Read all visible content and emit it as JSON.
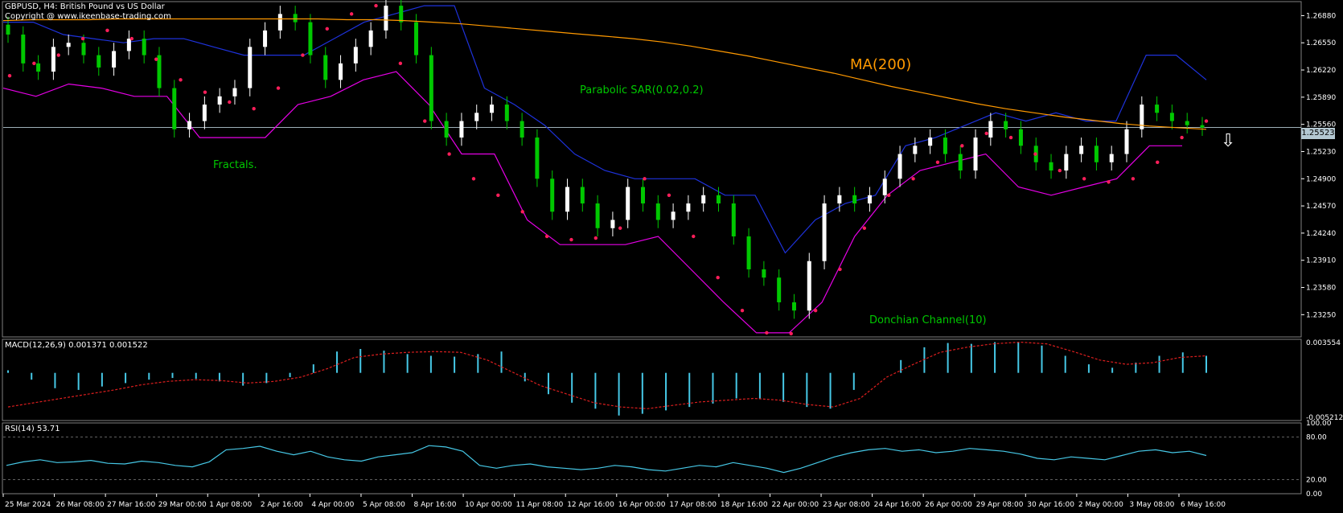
{
  "header": {
    "title": "GBPUSD, H4:  British Pound vs US Dollar",
    "copyright": "Copyright @ www.ikeenbase-trading.com"
  },
  "annotations": {
    "ma": "MA(200)",
    "sar": "Parabolic SAR(0.02,0.2)",
    "fractals": "Fractals.",
    "donchian": "Donchian Channel(10)"
  },
  "indicator_labels": {
    "macd": "MACD(12,26,9) 0.001371 0.001522",
    "rsi": "RSI(14) 53.71"
  },
  "current_price": "1.25523",
  "colors": {
    "background": "#000000",
    "grid": "#808080",
    "bull_candle": "#ffffff",
    "bear_candle": "#00c800",
    "ma": "#ff9900",
    "sar": "#ff1e5a",
    "donchian_upper": "#1e32dc",
    "donchian_lower": "#e600e6",
    "fractal": "#46c8e6",
    "macd_hist": "#46c8e6",
    "macd_signal": "#dc1e1e",
    "rsi": "#46c8e6",
    "annotation": "#00c800"
  },
  "chart_data": {
    "type": "candlestick",
    "main": {
      "ylim": [
        1.2298,
        1.2705
      ],
      "y_ticks": [
        "1.26880",
        "1.26550",
        "1.26220",
        "1.25890",
        "1.25560",
        "1.25230",
        "1.24900",
        "1.24570",
        "1.24240",
        "1.23910",
        "1.23580",
        "1.23250"
      ],
      "close": [
        1.2665,
        1.263,
        1.262,
        1.265,
        1.2655,
        1.264,
        1.2625,
        1.2645,
        1.266,
        1.264,
        1.26,
        1.255,
        1.256,
        1.258,
        1.259,
        1.26,
        1.265,
        1.267,
        1.269,
        1.268,
        1.264,
        1.261,
        1.263,
        1.265,
        1.267,
        1.27,
        1.268,
        1.264,
        1.256,
        1.254,
        1.256,
        1.257,
        1.258,
        1.256,
        1.254,
        1.249,
        1.245,
        1.248,
        1.246,
        1.243,
        1.244,
        1.248,
        1.246,
        1.244,
        1.245,
        1.246,
        1.247,
        1.246,
        1.242,
        1.238,
        1.237,
        1.234,
        1.233,
        1.239,
        1.246,
        1.247,
        1.246,
        1.247,
        1.249,
        1.252,
        1.253,
        1.254,
        1.252,
        1.25,
        1.254,
        1.256,
        1.255,
        1.253,
        1.251,
        1.25,
        1.252,
        1.253,
        1.251,
        1.252,
        1.255,
        1.258,
        1.257,
        1.256,
        1.2555,
        1.2552
      ],
      "ma200": [
        1.2682,
        1.2683,
        1.2683,
        1.2683,
        1.2684,
        1.2684,
        1.2684,
        1.2684,
        1.2684,
        1.2684,
        1.2684,
        1.2684,
        1.2683,
        1.2683,
        1.2682,
        1.268,
        1.2678,
        1.2675,
        1.2672,
        1.2669,
        1.2666,
        1.2663,
        1.266,
        1.2656,
        1.2651,
        1.2645,
        1.2639,
        1.2632,
        1.2625,
        1.2618,
        1.261,
        1.2602,
        1.2595,
        1.2588,
        1.2581,
        1.2575,
        1.257,
        1.2565,
        1.2561,
        1.2557,
        1.2554,
        1.2552,
        1.255
      ],
      "sar": [
        1.2615,
        1.263,
        1.264,
        1.266,
        1.267,
        1.266,
        1.2635,
        1.261,
        1.2595,
        1.2583,
        1.2575,
        1.26,
        1.264,
        1.2672,
        1.269,
        1.27,
        1.263,
        1.256,
        1.252,
        1.249,
        1.247,
        1.245,
        1.242,
        1.2416,
        1.2418,
        1.243,
        1.249,
        1.247,
        1.242,
        1.237,
        1.233,
        1.2303,
        1.2302,
        1.233,
        1.238,
        1.243,
        1.247,
        1.249,
        1.251,
        1.253,
        1.2545,
        1.254,
        1.252,
        1.25,
        1.249,
        1.2486,
        1.249,
        1.251,
        1.254,
        1.256
      ],
      "donchian_upper": [
        1.268,
        1.268,
        1.2665,
        1.266,
        1.2655,
        1.266,
        1.266,
        1.265,
        1.264,
        1.264,
        1.264,
        1.266,
        1.268,
        1.269,
        1.27,
        1.27,
        1.26,
        1.258,
        1.2555,
        1.252,
        1.25,
        1.249,
        1.249,
        1.249,
        1.247,
        1.247,
        1.24,
        1.244,
        1.246,
        1.247,
        1.253,
        1.254,
        1.2555,
        1.257,
        1.256,
        1.257,
        1.256,
        1.256,
        1.264,
        1.264,
        1.261
      ],
      "donchian_lower": [
        1.26,
        1.259,
        1.2605,
        1.26,
        1.259,
        1.259,
        1.254,
        1.254,
        1.254,
        1.258,
        1.259,
        1.261,
        1.262,
        1.258,
        1.252,
        1.252,
        1.244,
        1.241,
        1.241,
        1.241,
        1.242,
        1.238,
        1.234,
        1.2303,
        1.2303,
        1.234,
        1.242,
        1.247,
        1.25,
        1.251,
        1.252,
        1.248,
        1.247,
        1.248,
        1.249,
        1.253,
        1.253
      ]
    },
    "macd": {
      "ylim": [
        -0.005212,
        0.003554
      ],
      "y_ticks": [
        "0.003554",
        "-0.005212"
      ],
      "histogram": [
        0.0003,
        -0.0008,
        -0.0018,
        -0.002,
        -0.0016,
        -0.0012,
        -0.0008,
        -0.0006,
        -0.0007,
        -0.001,
        -0.0015,
        -0.0012,
        -0.0005,
        0.001,
        0.0025,
        0.0028,
        0.0026,
        0.0022,
        0.002,
        0.0019,
        0.0022,
        0.0025,
        -0.001,
        -0.0025,
        -0.0035,
        -0.0042,
        -0.005,
        -0.0048,
        -0.0044,
        -0.004,
        -0.0036,
        -0.003,
        -0.003,
        -0.0034,
        -0.004,
        -0.0042,
        -0.002,
        0.0,
        0.0015,
        0.003,
        0.0035,
        0.0034,
        0.0036,
        0.0036,
        0.0032,
        0.002,
        0.001,
        0.0006,
        0.0012,
        0.002,
        0.0024,
        0.002
      ],
      "signal": [
        -0.004,
        -0.0035,
        -0.003,
        -0.0025,
        -0.002,
        -0.0014,
        -0.001,
        -0.0008,
        -0.0009,
        -0.0012,
        -0.001,
        -0.0005,
        0.0005,
        0.0018,
        0.0022,
        0.0024,
        0.0025,
        0.0024,
        0.0015,
        0.0,
        -0.0015,
        -0.0025,
        -0.0035,
        -0.004,
        -0.0042,
        -0.0038,
        -0.0034,
        -0.0032,
        -0.003,
        -0.0032,
        -0.0037,
        -0.004,
        -0.003,
        -0.0005,
        0.001,
        0.0024,
        0.003,
        0.0034,
        0.0036,
        0.0034,
        0.0025,
        0.0015,
        0.001,
        0.0012,
        0.0018,
        0.002
      ]
    },
    "rsi": {
      "ylim": [
        0,
        100
      ],
      "y_ticks": [
        "100.00",
        "80.00",
        "20.00",
        "0.00"
      ],
      "levels": [
        80,
        20
      ],
      "values": [
        40,
        45,
        48,
        44,
        45,
        47,
        43,
        42,
        46,
        44,
        40,
        38,
        45,
        62,
        64,
        67,
        60,
        55,
        60,
        52,
        48,
        46,
        52,
        55,
        58,
        68,
        66,
        60,
        40,
        36,
        40,
        42,
        38,
        36,
        34,
        36,
        40,
        38,
        34,
        32,
        36,
        40,
        38,
        44,
        40,
        36,
        30,
        36,
        44,
        52,
        58,
        62,
        64,
        60,
        62,
        58,
        60,
        64,
        62,
        60,
        56,
        50,
        48,
        52,
        50,
        48,
        54,
        60,
        62,
        58,
        60,
        54
      ]
    },
    "x_ticks": [
      "25 Mar 2024",
      "26 Mar 08:00",
      "27 Mar 16:00",
      "29 Mar 00:00",
      "1 Apr 08:00",
      "2 Apr 16:00",
      "4 Apr 00:00",
      "5 Apr 08:00",
      "8 Apr 16:00",
      "10 Apr 00:00",
      "11 Apr 08:00",
      "12 Apr 16:00",
      "16 Apr 00:00",
      "17 Apr 08:00",
      "18 Apr 16:00",
      "22 Apr 00:00",
      "23 Apr 08:00",
      "24 Apr 16:00",
      "26 Apr 00:00",
      "29 Apr 08:00",
      "30 Apr 16:00",
      "2 May 00:00",
      "3 May 08:00",
      "6 May 16:00"
    ]
  }
}
